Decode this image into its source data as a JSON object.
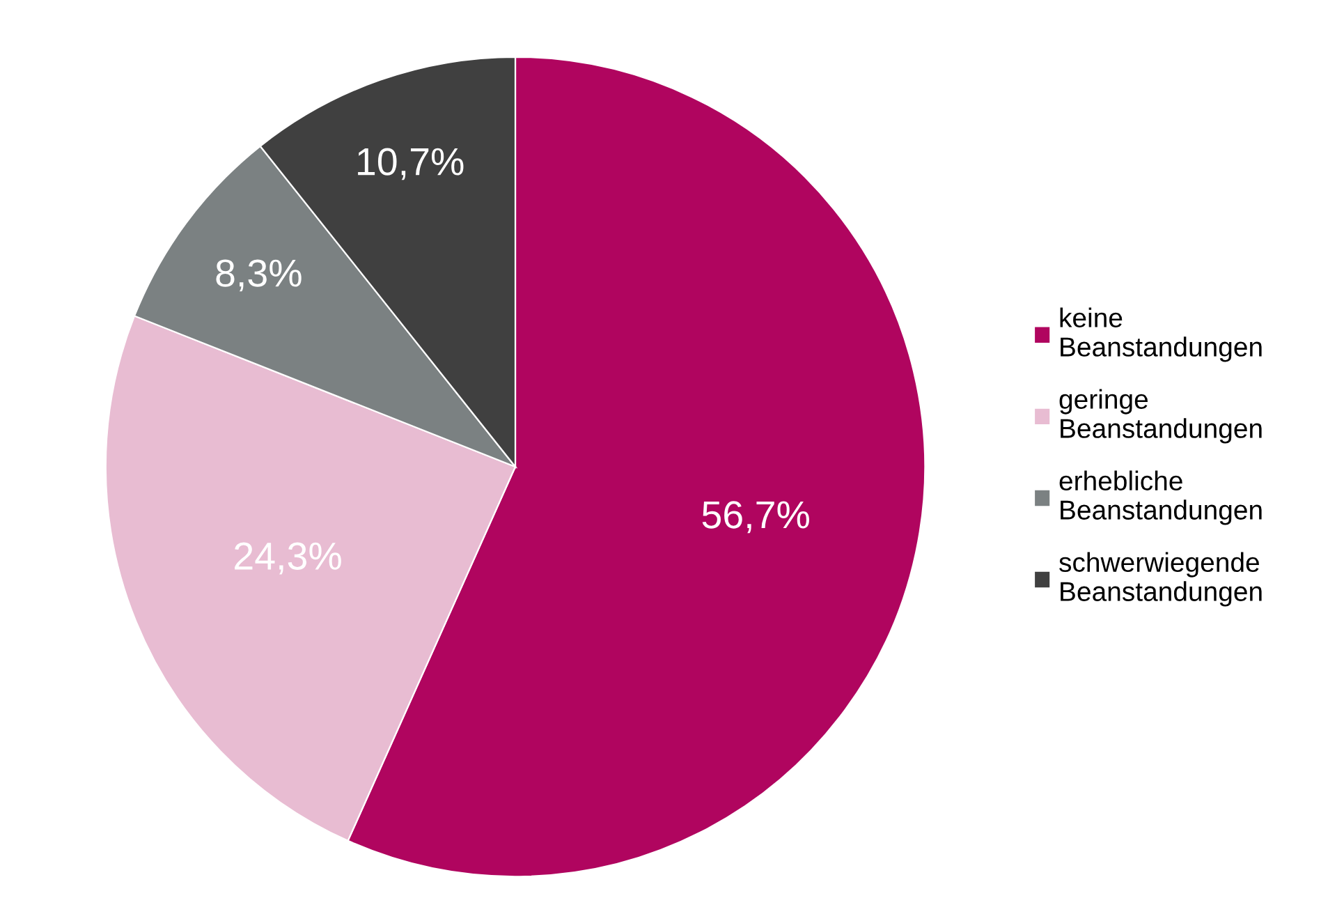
{
  "chart_data": {
    "type": "pie",
    "categories": [
      "keine Beanstandungen",
      "geringe Beanstandungen",
      "erhebliche Beanstandungen",
      "schwerwiegende Beanstandungen"
    ],
    "values": [
      56.7,
      24.3,
      8.3,
      10.7
    ],
    "value_labels": [
      "56,7%",
      "24,3%",
      "8,3%",
      "10,7%"
    ],
    "colors": [
      "#b0055f",
      "#e8bcd2",
      "#7b8182",
      "#404040"
    ],
    "legend": "right"
  }
}
